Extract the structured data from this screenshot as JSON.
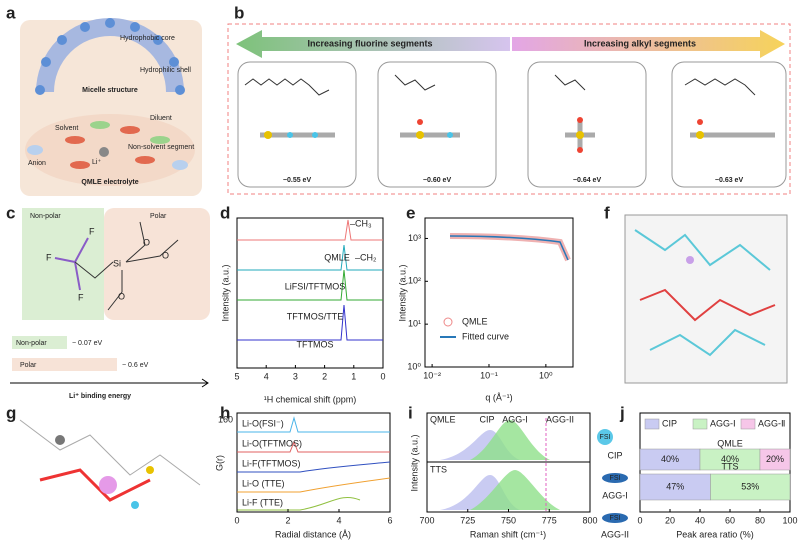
{
  "panels": {
    "a": {
      "label": "a",
      "texts": [
        "Hydrophobic core",
        "Hydrophilic shell",
        "Micelle structure",
        "Diluent",
        "Solvent",
        "Non-solvent segment",
        "Anion",
        "Li⁺",
        "QMLE electrolyte"
      ]
    },
    "b": {
      "label": "b",
      "left_arrow": "Increasing fluorine segments",
      "right_arrow": "Increasing alkyl segments",
      "energies": [
        "−0.55 eV",
        "−0.60 eV",
        "−0.64 eV",
        "−0.63 eV"
      ]
    },
    "c": {
      "label": "c",
      "nonpolar": "Non-polar",
      "polar": "Polar",
      "atoms": [
        "F",
        "F",
        "F",
        "Si",
        "O",
        "O",
        "O"
      ],
      "legend": [
        {
          "name": "Non-polar",
          "value": "− 0.07 eV"
        },
        {
          "name": "Polar",
          "value": "− 0.6 eV"
        }
      ],
      "axis": "Li⁺ binding energy"
    },
    "d": {
      "label": "d",
      "xlabel": "¹H chemical shift (ppm)",
      "ylabel": "Intensity (a.u.)",
      "xlim": [
        5,
        0
      ],
      "xticks": [
        5,
        4,
        3,
        2,
        1,
        0
      ],
      "traces": [
        "QMLE",
        "LiFSI/TFTMOS",
        "TFTMOS/TTE",
        "TFTMOS"
      ],
      "annotations": [
        "–CH₃",
        "–CH₂"
      ]
    },
    "e": {
      "label": "e",
      "xlabel": "q (Å⁻¹)",
      "ylabel": "Intensity (a.u.)",
      "log": true,
      "xlim": [
        0.0075,
        3
      ],
      "ylim": [
        1,
        3000
      ],
      "xticks": [
        {
          "value": 0.01,
          "label": "10⁻²"
        },
        {
          "value": 0.1,
          "label": "10⁻¹"
        },
        {
          "value": 1,
          "label": "10⁰"
        }
      ],
      "yticks": [
        {
          "value": 1,
          "label": "10⁰"
        },
        {
          "value": 10,
          "label": "10¹"
        },
        {
          "value": 100,
          "label": "10²"
        },
        {
          "value": 1000,
          "label": "10³"
        }
      ],
      "legend": [
        "QMLE",
        "Fitted curve"
      ]
    },
    "f": {
      "label": "f"
    },
    "g": {
      "label": "g"
    },
    "h": {
      "label": "h",
      "xlabel": "Radial distance (Å)",
      "ylabel": "G(r)",
      "xlim": [
        0,
        6
      ],
      "xticks": [
        0,
        2,
        4,
        6
      ],
      "ytick": "160",
      "traces": [
        "Li-O(FSI⁻)",
        "Li-O(TFTMOS)",
        "Li-F(TFTMOS)",
        "Li-O (TTE)",
        "Li-F (TTE)"
      ]
    },
    "i": {
      "label": "i",
      "xlabel": "Raman shift (cm⁻¹)",
      "ylabel": "Intensity (a.u.)",
      "xlim": [
        700,
        800
      ],
      "xticks": [
        700,
        725,
        750,
        775,
        800
      ],
      "samples": [
        "QMLE",
        "TTS"
      ],
      "peaks": [
        "CIP",
        "AGG-I",
        "AGG-II"
      ]
    },
    "j": {
      "label": "j",
      "icon_text": "FSI",
      "species": [
        "CIP",
        "AGG-I",
        "AGG-II"
      ],
      "chart_data": {
        "type": "stacked-bar-horizontal",
        "xlabel": "Peak area ratio (%)",
        "categories": [
          "QMLE",
          "TTS"
        ],
        "xlim": [
          0,
          100
        ],
        "xticks": [
          0,
          20,
          40,
          60,
          80,
          100
        ],
        "series": [
          {
            "name": "CIP",
            "color": "#c9cbf2",
            "values": [
              40,
              47
            ],
            "value_labels": [
              "40%",
              "47%"
            ]
          },
          {
            "name": "AGG-Ⅰ",
            "color": "#c9f2c4",
            "values": [
              40,
              53
            ],
            "value_labels": [
              "40%",
              "53%"
            ]
          },
          {
            "name": "AGG-Ⅱ",
            "color": "#f6c6e8",
            "values": [
              20,
              null
            ],
            "value_labels": [
              "20%",
              null
            ]
          }
        ]
      }
    }
  }
}
